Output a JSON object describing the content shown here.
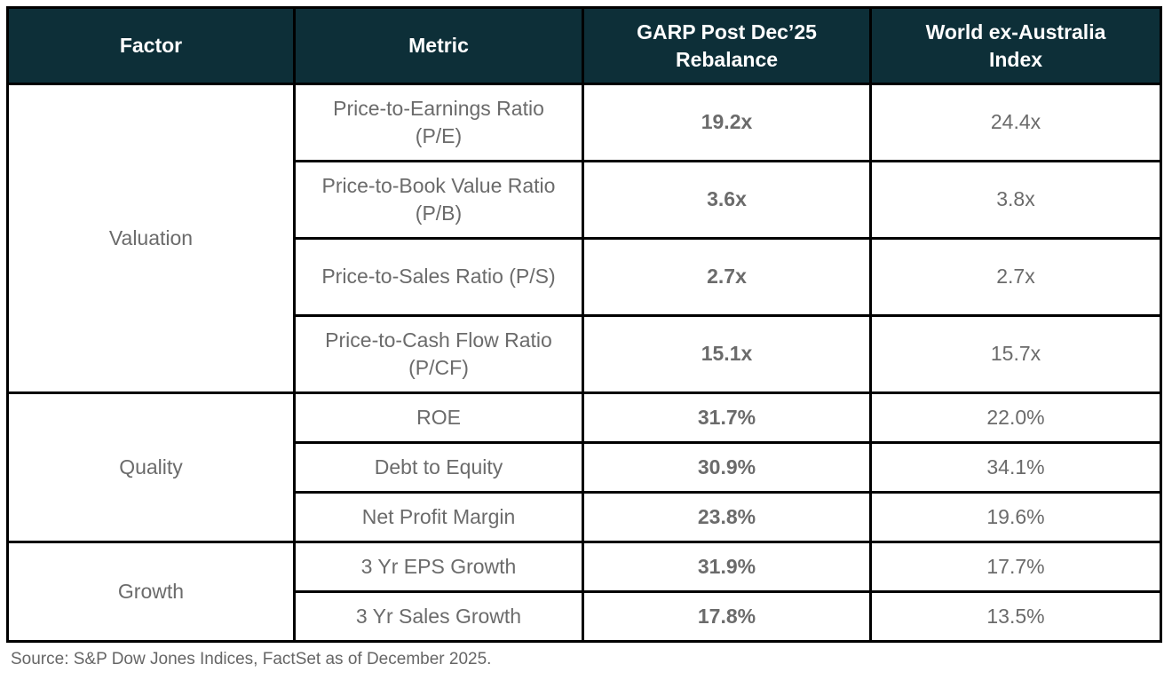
{
  "table": {
    "headers": {
      "factor": "Factor",
      "metric": "Metric",
      "garp": "GARP Post Dec’25 Rebalance",
      "world": "World ex-Australia Index"
    },
    "groups": [
      {
        "factor": "Valuation",
        "rows": [
          {
            "metric": "Price-to-Earnings Ratio (P/E)",
            "garp": "19.2x",
            "world": "24.4x"
          },
          {
            "metric": "Price-to-Book Value Ratio (P/B)",
            "garp": "3.6x",
            "world": "3.8x"
          },
          {
            "metric": "Price-to-Sales Ratio (P/S)",
            "garp": "2.7x",
            "world": "2.7x"
          },
          {
            "metric": "Price-to-Cash Flow Ratio (P/CF)",
            "garp": "15.1x",
            "world": "15.7x"
          }
        ]
      },
      {
        "factor": "Quality",
        "rows": [
          {
            "metric": "ROE",
            "garp": "31.7%",
            "world": "22.0%"
          },
          {
            "metric": "Debt to Equity",
            "garp": "30.9%",
            "world": "34.1%"
          },
          {
            "metric": "Net Profit Margin",
            "garp": "23.8%",
            "world": "19.6%"
          }
        ]
      },
      {
        "factor": "Growth",
        "rows": [
          {
            "metric": "3 Yr EPS Growth",
            "garp": "31.9%",
            "world": "17.7%"
          },
          {
            "metric": "3 Yr Sales Growth",
            "garp": "17.8%",
            "world": "13.5%"
          }
        ]
      }
    ]
  },
  "source": {
    "text": "Source: S&P Dow Jones Indices, FactSet as of December 2025."
  },
  "colors": {
    "header_bg": "#0d2f38",
    "header_text": "#ffffff",
    "body_text": "#6b6b6b",
    "border": "#000000"
  },
  "chart_data": {
    "type": "table",
    "title": "",
    "columns": [
      "Factor",
      "Metric",
      "GARP Post Dec’25 Rebalance",
      "World ex-Australia Index"
    ],
    "rows": [
      [
        "Valuation",
        "Price-to-Earnings Ratio (P/E)",
        "19.2x",
        "24.4x"
      ],
      [
        "Valuation",
        "Price-to-Book Value Ratio (P/B)",
        "3.6x",
        "3.8x"
      ],
      [
        "Valuation",
        "Price-to-Sales Ratio (P/S)",
        "2.7x",
        "2.7x"
      ],
      [
        "Valuation",
        "Price-to-Cash Flow Ratio (P/CF)",
        "15.1x",
        "15.7x"
      ],
      [
        "Quality",
        "ROE",
        "31.7%",
        "22.0%"
      ],
      [
        "Quality",
        "Debt to Equity",
        "30.9%",
        "34.1%"
      ],
      [
        "Quality",
        "Net Profit Margin",
        "23.8%",
        "19.6%"
      ],
      [
        "Growth",
        "3 Yr EPS Growth",
        "31.9%",
        "17.7%"
      ],
      [
        "Growth",
        "3 Yr Sales Growth",
        "17.8%",
        "13.5%"
      ]
    ],
    "emphasized_column": "GARP Post Dec’25 Rebalance",
    "source": "Source: S&P Dow Jones Indices, FactSet as of December 2025."
  }
}
